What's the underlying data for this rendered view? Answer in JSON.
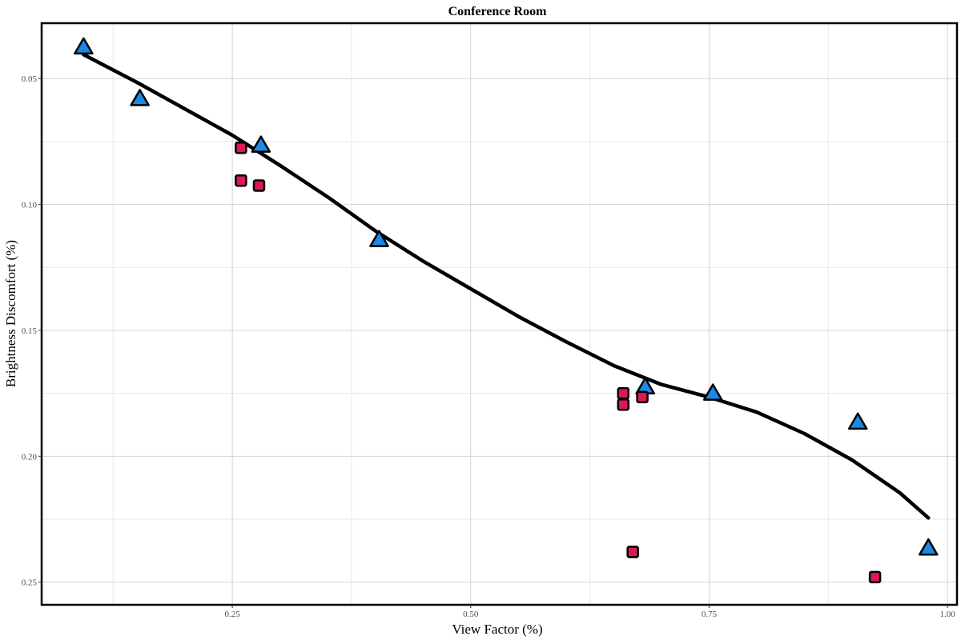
{
  "chart_data": {
    "type": "scatter",
    "title": "Conference Room",
    "xlabel": "View Factor (%)",
    "ylabel": "Brightness Discomfort (%)",
    "xlim": [
      0.05,
      1.01
    ],
    "ylim": [
      0.028,
      0.259
    ],
    "y_reversed": true,
    "x_ticks": [
      0.25,
      0.5,
      0.75,
      1.0
    ],
    "x_tick_labels": [
      "0.25",
      "0.50",
      "0.75",
      "1.00"
    ],
    "y_ticks": [
      0.05,
      0.1,
      0.15,
      0.2,
      0.25
    ],
    "y_tick_labels": [
      "0.05",
      "0.10",
      "0.15",
      "0.20",
      "0.25"
    ],
    "grid": true,
    "legend": "none",
    "series": [
      {
        "marker": "triangle",
        "color": "#1e88e5",
        "points": [
          {
            "x": 0.094,
            "y": 0.0375
          },
          {
            "x": 0.153,
            "y": 0.058
          },
          {
            "x": 0.28,
            "y": 0.0765
          },
          {
            "x": 0.404,
            "y": 0.114
          },
          {
            "x": 0.683,
            "y": 0.1725
          },
          {
            "x": 0.754,
            "y": 0.175
          },
          {
            "x": 0.906,
            "y": 0.1865
          },
          {
            "x": 0.98,
            "y": 0.2365
          }
        ]
      },
      {
        "marker": "square",
        "color": "#d81b50",
        "points": [
          {
            "x": 0.259,
            "y": 0.0775
          },
          {
            "x": 0.259,
            "y": 0.0905
          },
          {
            "x": 0.278,
            "y": 0.0925
          },
          {
            "x": 0.66,
            "y": 0.175
          },
          {
            "x": 0.66,
            "y": 0.1795
          },
          {
            "x": 0.68,
            "y": 0.1765
          },
          {
            "x": 0.67,
            "y": 0.238
          },
          {
            "x": 0.924,
            "y": 0.248
          }
        ]
      }
    ],
    "trend_line": {
      "color": "#000000",
      "points": [
        {
          "x": 0.094,
          "y": 0.0405
        },
        {
          "x": 0.15,
          "y": 0.0515
        },
        {
          "x": 0.2,
          "y": 0.062
        },
        {
          "x": 0.25,
          "y": 0.0725
        },
        {
          "x": 0.3,
          "y": 0.0845
        },
        {
          "x": 0.35,
          "y": 0.097
        },
        {
          "x": 0.4,
          "y": 0.1105
        },
        {
          "x": 0.45,
          "y": 0.1225
        },
        {
          "x": 0.5,
          "y": 0.1335
        },
        {
          "x": 0.55,
          "y": 0.1445
        },
        {
          "x": 0.6,
          "y": 0.1545
        },
        {
          "x": 0.65,
          "y": 0.164
        },
        {
          "x": 0.7,
          "y": 0.1715
        },
        {
          "x": 0.75,
          "y": 0.1765
        },
        {
          "x": 0.8,
          "y": 0.1825
        },
        {
          "x": 0.85,
          "y": 0.191
        },
        {
          "x": 0.9,
          "y": 0.2015
        },
        {
          "x": 0.95,
          "y": 0.2145
        },
        {
          "x": 0.98,
          "y": 0.2245
        }
      ]
    }
  }
}
